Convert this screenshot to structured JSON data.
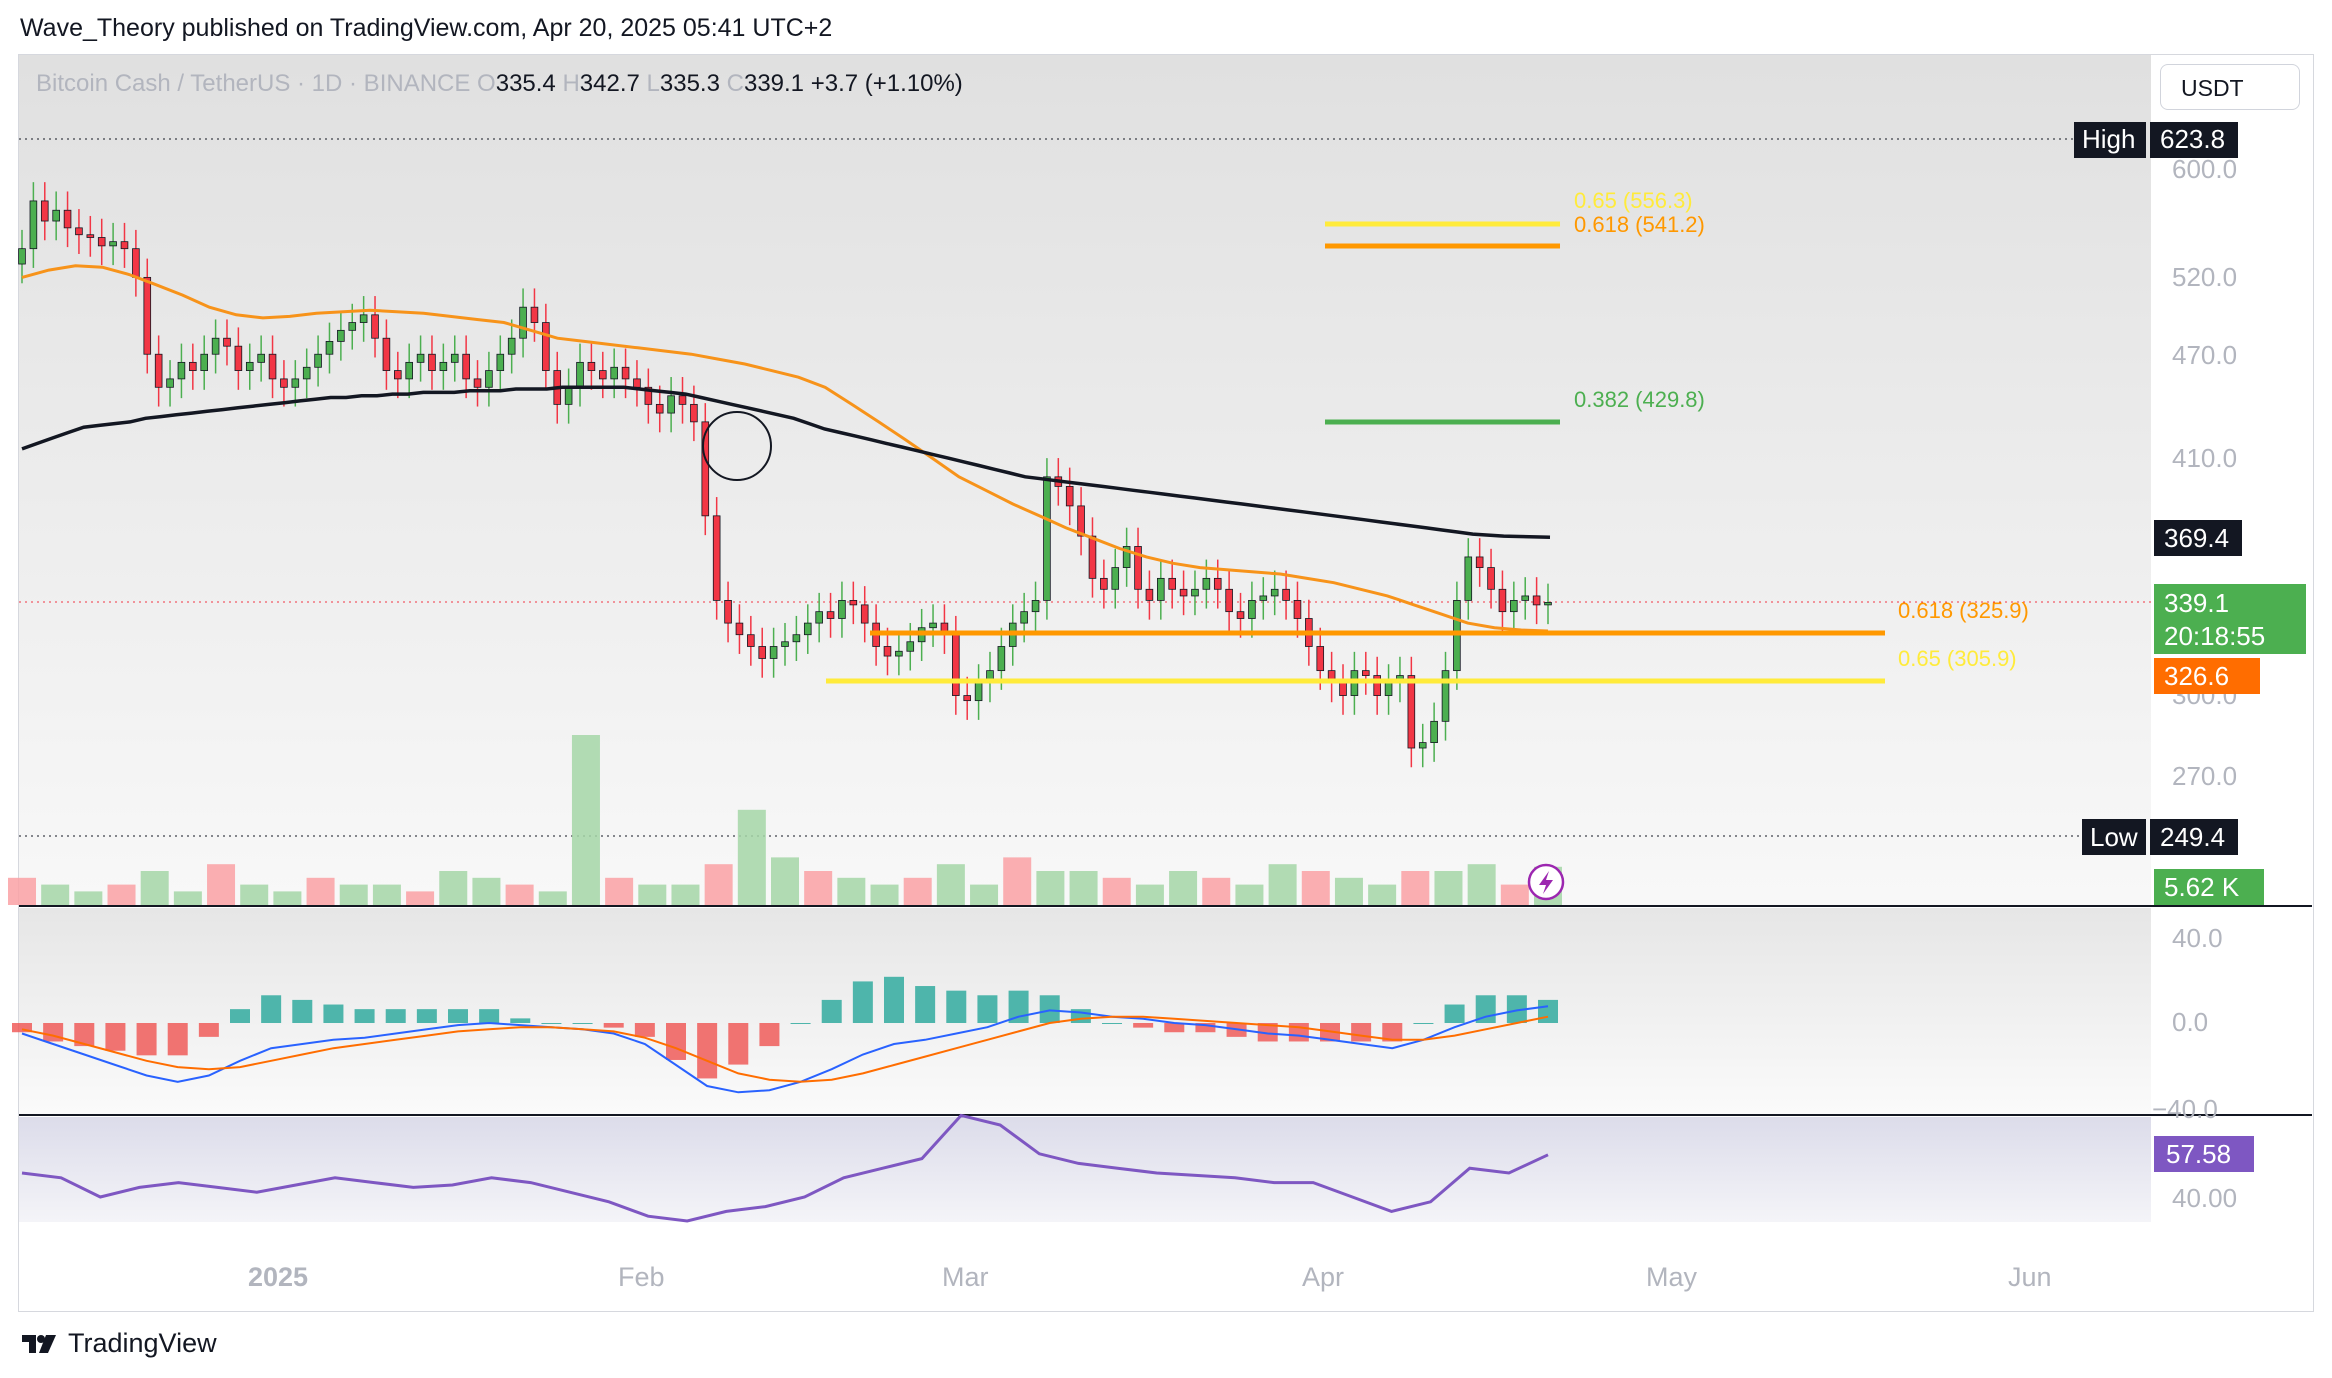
{
  "header": {
    "published_line": "Wave_Theory published on TradingView.com, Apr 20, 2025 05:41 UTC+2",
    "currency_button": "USDT"
  },
  "legend": {
    "symbol": "Bitcoin Cash / TetherUS · 1D · BINANCE",
    "o_label": "O",
    "o_value": "335.4",
    "h_label": "H",
    "h_value": "342.7",
    "l_label": "L",
    "l_value": "335.3",
    "c_label": "C",
    "c_value": "339.1",
    "change": "+3.7 (+1.10%)"
  },
  "footer": {
    "brand": "TradingView"
  },
  "colors": {
    "bull": "#4caf50",
    "bear": "#f23645",
    "ema_orange": "#f7931a",
    "ma_black": "#131722",
    "fib_yellow": "#ffeb3b",
    "fib_orange": "#ff9800",
    "fib_green": "#4caf50",
    "macd_blue": "#2962ff",
    "signal_orange": "#ff6d00",
    "rsi_purple": "#7e57c2",
    "vol_up": "#a5d6a7",
    "vol_down": "#faa1a4"
  },
  "chart_data": [
    {
      "type": "candlestick",
      "symbol": "BCHUSDT",
      "interval": "1D",
      "x_ticks": [
        "2025",
        "Feb",
        "Mar",
        "Apr",
        "May",
        "Jun"
      ],
      "y_ticks": [
        "600.0",
        "520.0",
        "470.0",
        "410.0",
        "300.0",
        "270.0"
      ],
      "scale": "log",
      "ylim": [
        249.4,
        623.8
      ],
      "high_marker": {
        "label": "High",
        "value": "623.8"
      },
      "low_marker": {
        "label": "Low",
        "value": "249.4"
      },
      "last_price": {
        "value": "339.1",
        "countdown": "20:18:55"
      },
      "price_tags": {
        "ma_black": "369.4",
        "ema_orange": "326.6",
        "volume": "5.62 K"
      },
      "fib_levels": [
        {
          "label": "0.65 (556.3)",
          "value": 556.3,
          "color": "yellow"
        },
        {
          "label": "0.618 (541.2)",
          "value": 541.2,
          "color": "orange"
        },
        {
          "label": "0.382 (429.8)",
          "value": 429.8,
          "color": "green"
        },
        {
          "label": "0.618 (325.9)",
          "value": 325.9,
          "color": "orange"
        },
        {
          "label": "0.65 (305.9)",
          "value": 305.9,
          "color": "yellow"
        }
      ],
      "closes": [
        540,
        575,
        560,
        568,
        555,
        550,
        548,
        542,
        545,
        540,
        520,
        470,
        450,
        455,
        465,
        460,
        470,
        480,
        475,
        460,
        465,
        470,
        455,
        450,
        455,
        462,
        470,
        478,
        485,
        490,
        495,
        480,
        460,
        455,
        465,
        470,
        460,
        465,
        470,
        455,
        450,
        460,
        470,
        480,
        500,
        490,
        460,
        440,
        450,
        465,
        460,
        455,
        462,
        455,
        450,
        440,
        435,
        445,
        440,
        430,
        380,
        340,
        330,
        325,
        320,
        315,
        320,
        322,
        325,
        330,
        335,
        332,
        340,
        338,
        330,
        320,
        316,
        318,
        322,
        328,
        330,
        325,
        300,
        298,
        305,
        310,
        320,
        330,
        335,
        340,
        400,
        395,
        385,
        370,
        350,
        345,
        355,
        365,
        345,
        340,
        350,
        345,
        342,
        345,
        350,
        345,
        335,
        332,
        340,
        342,
        345,
        340,
        332,
        320,
        310,
        305,
        300,
        310,
        308,
        300,
        305,
        308,
        280,
        282,
        290,
        310,
        340,
        360,
        355,
        345,
        335,
        340,
        342,
        338,
        339.1
      ],
      "ma_black": [
        415,
        418,
        421,
        424,
        427,
        428,
        429,
        430,
        432,
        433,
        434,
        435,
        436,
        437,
        438,
        439,
        440,
        441,
        442,
        443,
        444,
        444,
        445,
        445,
        446,
        446,
        447,
        447,
        447,
        448,
        448,
        448,
        449,
        449,
        449,
        450,
        450,
        450,
        450,
        450,
        449,
        448,
        447,
        446,
        444,
        442,
        440,
        438,
        436,
        434,
        432,
        429,
        426,
        424,
        422,
        420,
        418,
        416,
        414,
        412,
        410,
        408,
        406,
        404,
        402,
        400,
        399,
        398,
        397,
        396,
        395,
        394,
        393,
        392,
        391,
        390,
        389,
        388,
        387,
        386,
        385,
        384,
        383,
        382,
        381,
        380,
        379,
        378,
        377,
        376,
        375,
        374,
        373,
        372,
        371,
        370.5,
        370,
        369.8,
        369.6,
        369.4
      ],
      "ema_orange": [
        520,
        525,
        528,
        527,
        522,
        515,
        508,
        500,
        495,
        493,
        494,
        496,
        497,
        498,
        497,
        496,
        494,
        492,
        490,
        485,
        480,
        478,
        476,
        474,
        472,
        470,
        467,
        464,
        460,
        456,
        450,
        440,
        430,
        420,
        410,
        400,
        393,
        386,
        380,
        374,
        369,
        364,
        360,
        357,
        355,
        354,
        353,
        352,
        350,
        348,
        345,
        342,
        338,
        334,
        330,
        328,
        327,
        326.6
      ],
      "volume": [
        4,
        3,
        2,
        3,
        5,
        2,
        6,
        3,
        2,
        4,
        3,
        3,
        2,
        5,
        4,
        3,
        2,
        25,
        4,
        3,
        3,
        6,
        14,
        7,
        5,
        4,
        3,
        4,
        6,
        3,
        7,
        5,
        5,
        4,
        3,
        5,
        4,
        3,
        6,
        5,
        4,
        3,
        5,
        5,
        6,
        3,
        5.62
      ]
    },
    {
      "type": "line",
      "name": "MACD",
      "y_ticks": [
        "40.0",
        "0.0",
        "−40.0"
      ],
      "ylim": [
        -40,
        40
      ],
      "macd": [
        -5,
        -10,
        -15,
        -20,
        -25,
        -28,
        -25,
        -18,
        -12,
        -10,
        -8,
        -7,
        -5,
        -3,
        -1,
        0,
        -1,
        -2,
        -3,
        -5,
        -10,
        -20,
        -30,
        -33,
        -32,
        -28,
        -22,
        -15,
        -10,
        -8,
        -5,
        -2,
        3,
        6,
        5,
        3,
        2,
        0,
        -1,
        -3,
        -5,
        -6,
        -8,
        -10,
        -12,
        -8,
        -2,
        3,
        6,
        8
      ],
      "signal": [
        -3,
        -6,
        -10,
        -14,
        -18,
        -21,
        -22,
        -21,
        -18,
        -15,
        -12,
        -10,
        -8,
        -6,
        -4,
        -3,
        -2,
        -2,
        -3,
        -4,
        -7,
        -12,
        -18,
        -24,
        -27,
        -28,
        -27,
        -24,
        -20,
        -16,
        -12,
        -8,
        -4,
        0,
        2,
        3,
        3,
        2,
        1,
        0,
        -1,
        -2,
        -4,
        -6,
        -8,
        -8,
        -6,
        -3,
        0,
        3
      ]
    },
    {
      "type": "line",
      "name": "RSI",
      "y_ticks": [
        "40.00"
      ],
      "last": "57.58",
      "values": [
        50,
        48,
        40,
        44,
        46,
        44,
        42,
        45,
        48,
        46,
        44,
        45,
        48,
        46,
        42,
        38,
        32,
        30,
        34,
        36,
        40,
        48,
        52,
        56,
        74,
        70,
        58,
        54,
        52,
        50,
        49,
        48,
        46,
        46,
        40,
        34,
        38,
        52,
        50,
        57.58
      ]
    }
  ]
}
